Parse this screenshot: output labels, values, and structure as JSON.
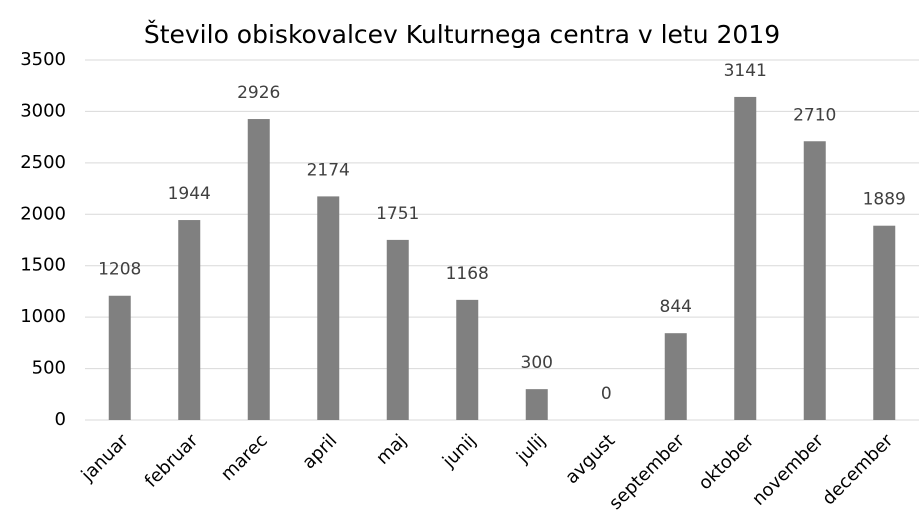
{
  "chart_data": {
    "type": "bar",
    "title": "Število obiskovalcev Kulturnega centra v letu 2019",
    "categories": [
      "januar",
      "februar",
      "marec",
      "april",
      "maj",
      "junij",
      "julij",
      "avgust",
      "september",
      "oktober",
      "november",
      "december"
    ],
    "values": [
      1208,
      1944,
      2926,
      2174,
      1751,
      1168,
      300,
      0,
      844,
      3141,
      2710,
      1889
    ],
    "color": "#808080",
    "ylim": [
      0,
      3500
    ],
    "yticks": [
      0,
      500,
      1000,
      1500,
      2000,
      2500,
      3000,
      3500
    ],
    "grid": true,
    "data_labels": true
  }
}
